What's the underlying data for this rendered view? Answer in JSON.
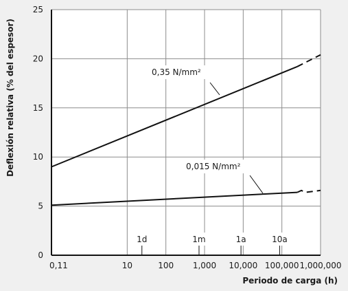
{
  "chart_data": {
    "type": "line",
    "title": "",
    "xlabel": "Periodo de carga (h)",
    "ylabel": "Deflexión relativa (% del espesor)",
    "x_scale": "log",
    "xlim": [
      0.11,
      1000000
    ],
    "ylim": [
      0,
      25
    ],
    "grid": true,
    "xticks": [
      {
        "value": 0.11,
        "label": "0,11"
      },
      {
        "value": 10,
        "label": "10"
      },
      {
        "value": 100,
        "label": "100"
      },
      {
        "value": 1000,
        "label": "1,000"
      },
      {
        "value": 10000,
        "label": "10,000"
      },
      {
        "value": 100000,
        "label": "100,000"
      },
      {
        "value": 1000000,
        "label": "1,000,000"
      }
    ],
    "yticks": [
      {
        "value": 0,
        "label": "0"
      },
      {
        "value": 5,
        "label": "5"
      },
      {
        "value": 10,
        "label": "10"
      },
      {
        "value": 15,
        "label": "15"
      },
      {
        "value": 20,
        "label": "20"
      },
      {
        "value": 25,
        "label": "25"
      }
    ],
    "time_markers": [
      {
        "label": "1d",
        "x": 24
      },
      {
        "label": "1m",
        "x": 720
      },
      {
        "label": "1a",
        "x": 8760
      },
      {
        "label": "10a",
        "x": 87600
      }
    ],
    "series": [
      {
        "name": "0,35 N/mm²",
        "points": [
          [
            0.11,
            9.0
          ],
          [
            250000,
            19.2
          ]
        ],
        "extrapolated": [
          [
            250000,
            19.2
          ],
          [
            1000000,
            20.4
          ]
        ]
      },
      {
        "name": "0,015 N/mm²",
        "points": [
          [
            0.11,
            5.1
          ],
          [
            250000,
            6.4
          ]
        ],
        "extrapolated": [
          [
            250000,
            6.4
          ],
          [
            320000,
            6.6
          ],
          [
            400000,
            6.4
          ],
          [
            1000000,
            6.6
          ]
        ]
      }
    ]
  }
}
